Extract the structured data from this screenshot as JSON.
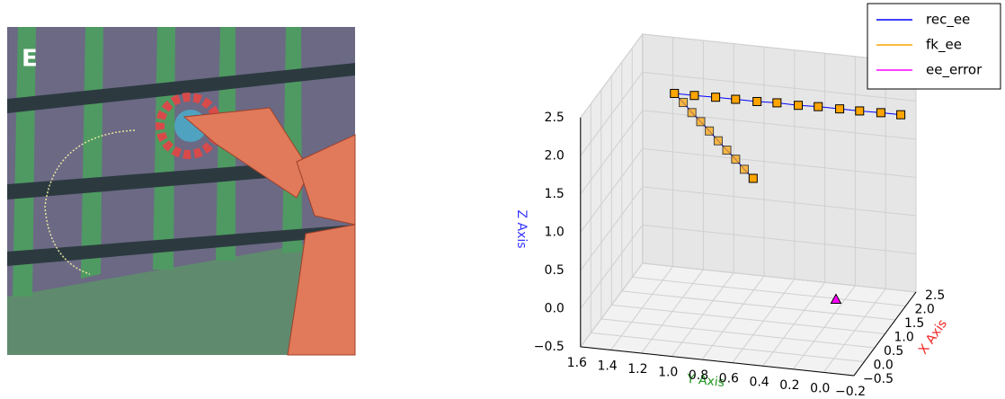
{
  "image_panel": {
    "label": "E"
  },
  "chart_data": {
    "type": "scatter3d",
    "xlabel": "X Axis",
    "ylabel": "Y Axis",
    "zlabel": "Z Axis",
    "xlim": [
      -0.5,
      2.5
    ],
    "ylim": [
      -0.2,
      1.6
    ],
    "zlim": [
      -0.5,
      2.5
    ],
    "xticks": [
      {
        "value": -0.5,
        "label": "−0.5"
      },
      {
        "value": 0,
        "label": "0.0"
      },
      0.5,
      {
        "value": 1,
        "label": "1.0"
      },
      1.5,
      {
        "value": 2,
        "label": "2.0"
      },
      2.5
    ],
    "yticks": [
      1.6,
      1.4,
      1.2,
      {
        "value": 1,
        "label": "1.0"
      },
      0.8,
      0.6,
      0.4,
      0.2,
      {
        "value": 0,
        "label": "0.0"
      },
      {
        "value": -0.2,
        "label": "−0.2"
      }
    ],
    "zticks": [
      {
        "value": -0.5,
        "label": "−0.5"
      },
      {
        "value": 0,
        "label": "0.0"
      },
      0.5,
      {
        "value": 1,
        "label": "1.0"
      },
      1.5,
      {
        "value": 2,
        "label": "2.0"
      },
      2.5
    ],
    "grid": true,
    "legend": "upper right",
    "series": [
      {
        "name": "rec_ee",
        "color": "#0000ff",
        "mark": "line",
        "x": [
          0.5,
          0.44,
          0.39,
          0.33,
          0.28,
          0.22,
          0.17,
          0.11,
          0.06,
          0,
          0.23,
          0.45,
          0.68,
          0.91,
          1.14,
          1.36,
          1.59,
          1.82,
          2.05,
          2.27,
          2.5
        ],
        "y": [
          0.6,
          0.65,
          0.7,
          0.75,
          0.8,
          0.85,
          0.9,
          0.95,
          1.0,
          1.05,
          0.95,
          0.84,
          0.74,
          0.63,
          0.53,
          0.42,
          0.32,
          0.21,
          0.11,
          0.0,
          -0.1
        ],
        "z": [
          1.55,
          1.68,
          1.82,
          1.95,
          2.08,
          2.22,
          2.35,
          2.48,
          2.62,
          2.75,
          2.66,
          2.58,
          2.49,
          2.4,
          2.32,
          2.23,
          2.15,
          2.06,
          1.97,
          1.89,
          1.8
        ]
      },
      {
        "name": "fk_ee",
        "color": "#ffa500",
        "mark": "square",
        "x": [
          0.5,
          0.44,
          0.39,
          0.33,
          0.28,
          0.22,
          0.17,
          0.11,
          0.06,
          0,
          0.23,
          0.45,
          0.68,
          0.91,
          1.14,
          1.36,
          1.59,
          1.82,
          2.05,
          2.27,
          2.5
        ],
        "y": [
          0.6,
          0.65,
          0.7,
          0.75,
          0.8,
          0.85,
          0.9,
          0.95,
          1.0,
          1.05,
          0.95,
          0.84,
          0.74,
          0.63,
          0.53,
          0.42,
          0.32,
          0.21,
          0.11,
          0.0,
          -0.1
        ],
        "z": [
          1.55,
          1.68,
          1.82,
          1.95,
          2.08,
          2.22,
          2.35,
          2.48,
          2.62,
          2.75,
          2.66,
          2.58,
          2.49,
          2.4,
          2.32,
          2.23,
          2.15,
          2.06,
          1.97,
          1.89,
          1.8
        ]
      },
      {
        "name": "ee_error",
        "color": "#ff00ff",
        "mark": "triangle",
        "x": [
          1.2
        ],
        "y": [
          0.15
        ],
        "z": [
          -0.2
        ]
      }
    ]
  }
}
